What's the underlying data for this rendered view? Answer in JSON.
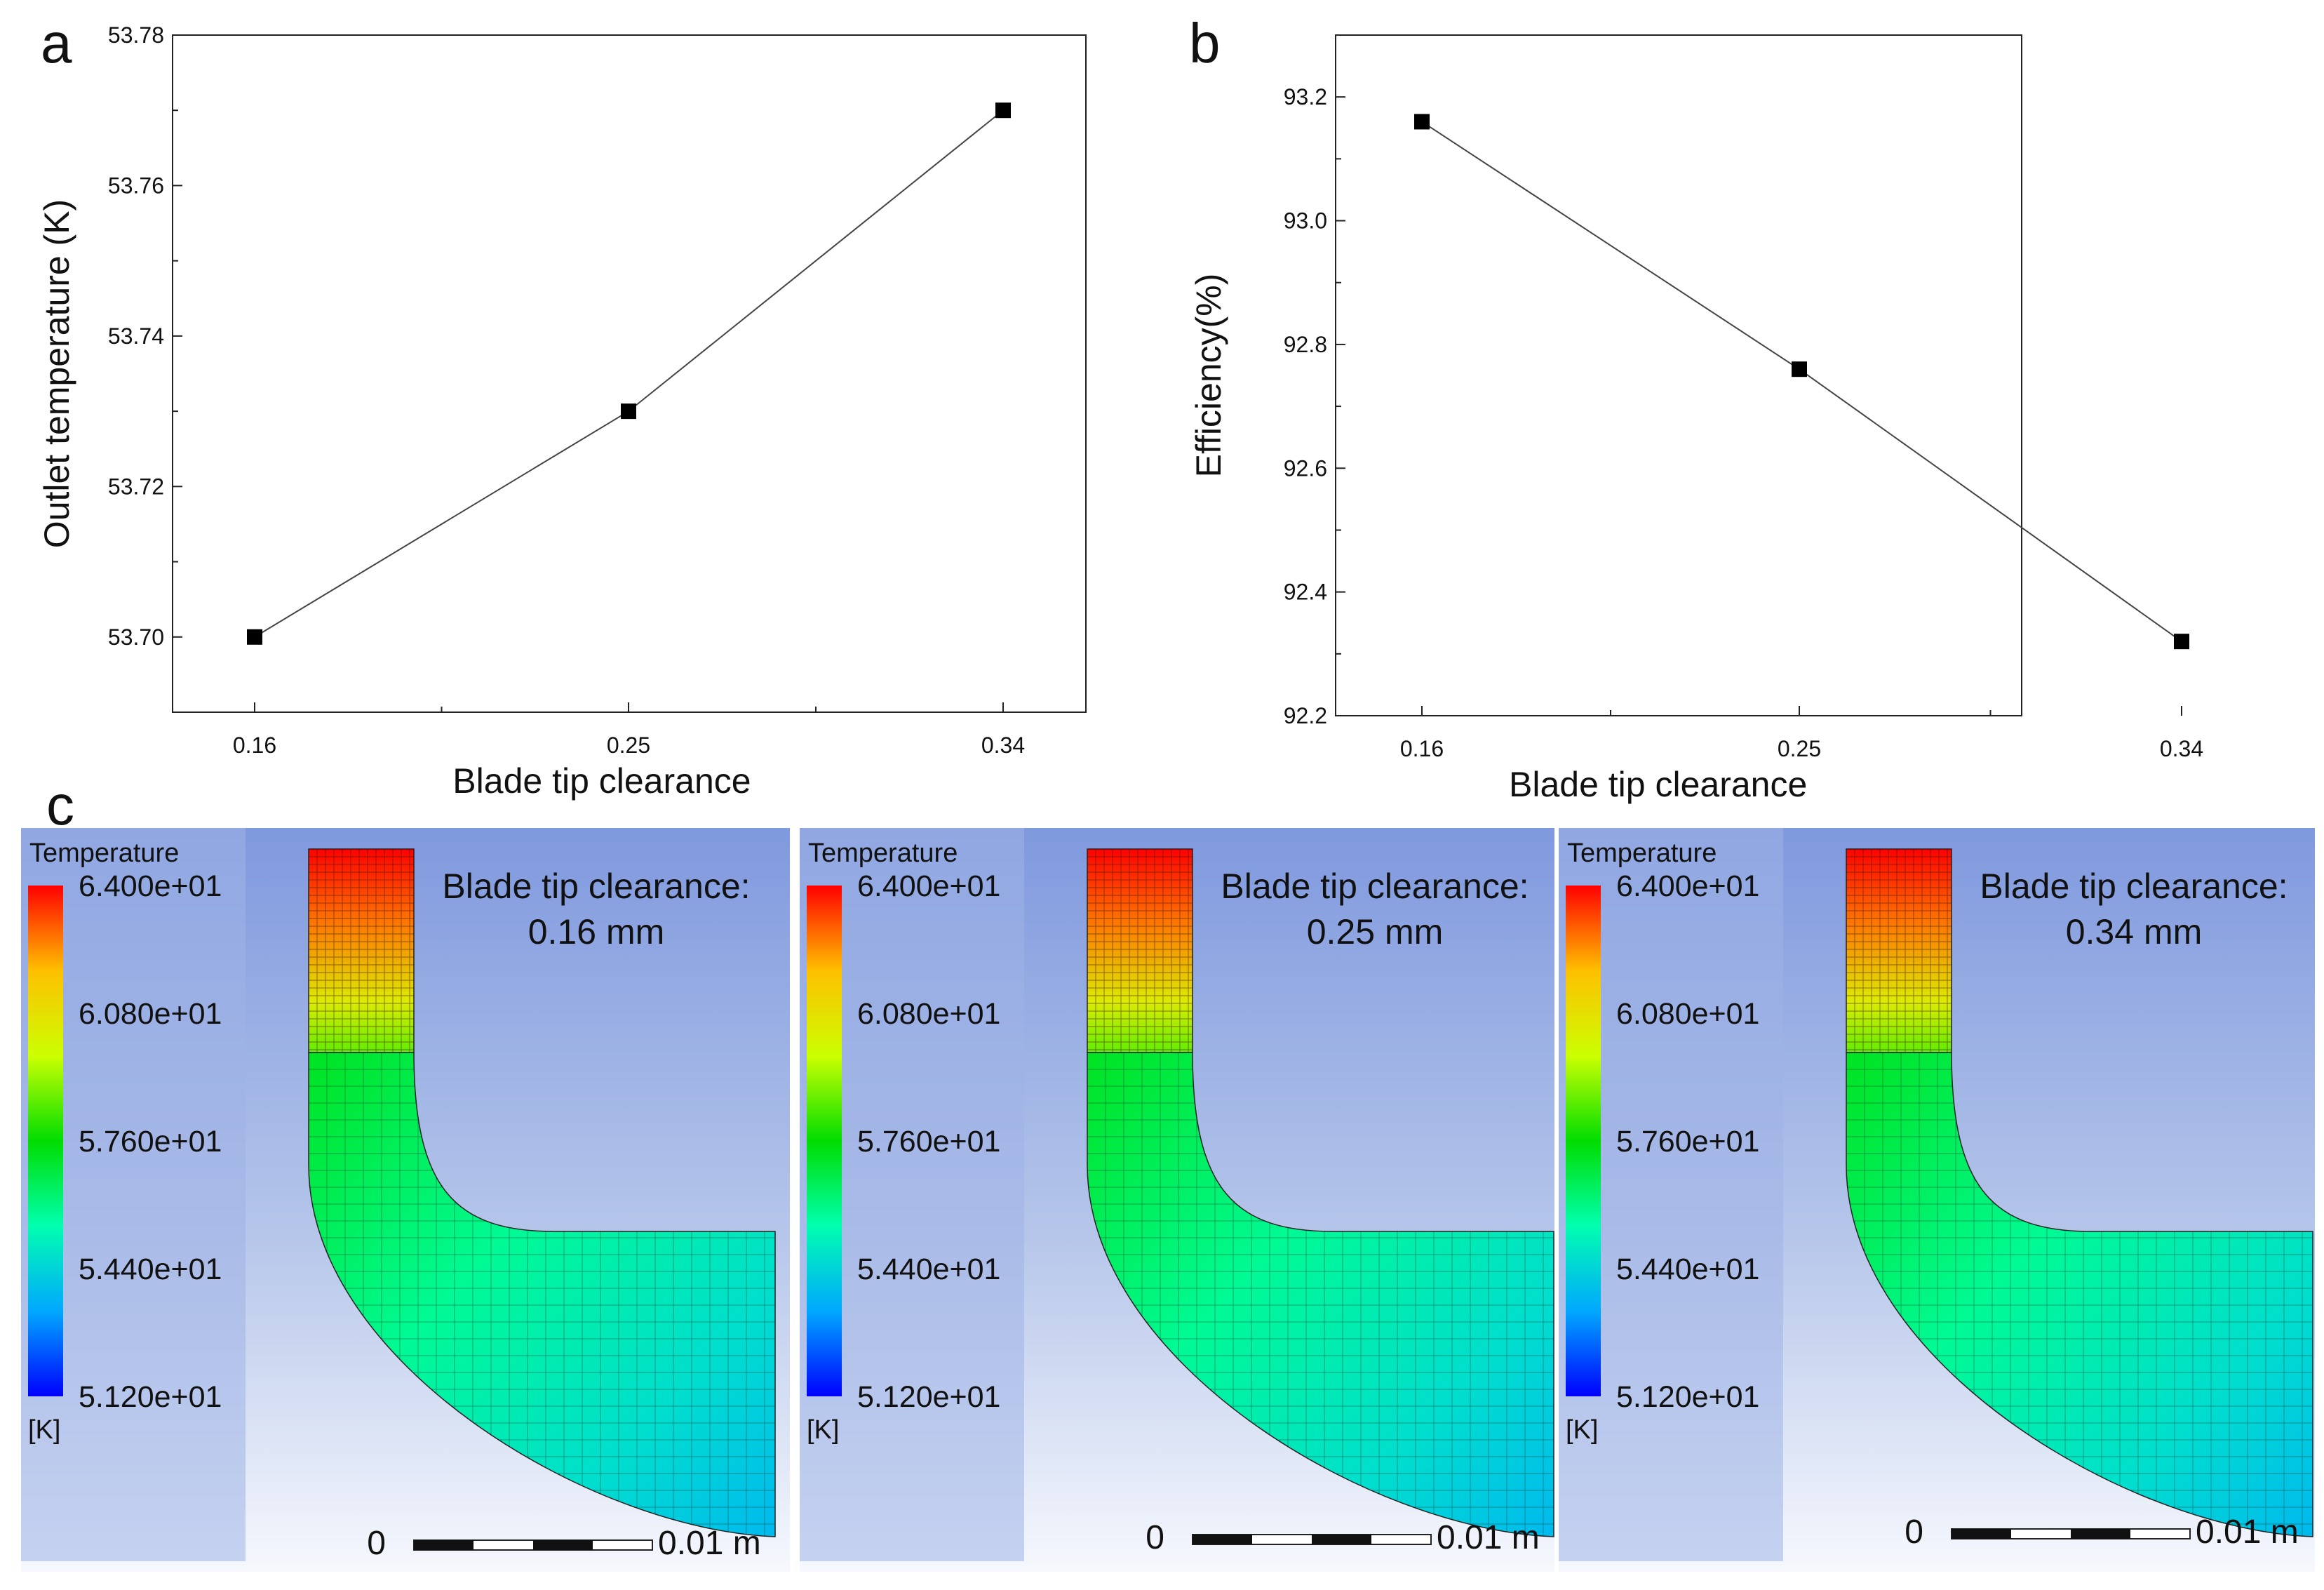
{
  "panels": {
    "a": "a",
    "b": "b",
    "c": "c"
  },
  "chart_data": [
    {
      "type": "line",
      "panel": "a",
      "title": "",
      "categories": [
        "0.16",
        "0.25",
        "0.34"
      ],
      "x": [
        0.16,
        0.25,
        0.34
      ],
      "values": [
        53.7,
        53.73,
        53.77
      ],
      "xlabel": "Blade tip clearance",
      "ylabel": "Outlet temperature (K)",
      "ylim": [
        53.69,
        53.78
      ],
      "yticks": [
        "53.70",
        "53.72",
        "53.74",
        "53.76",
        "53.78"
      ],
      "marker": "square",
      "grid": false
    },
    {
      "type": "line",
      "panel": "b",
      "title": "",
      "categories": [
        "0.16",
        "0.25",
        "0.34"
      ],
      "x": [
        0.16,
        0.25,
        0.34
      ],
      "values": [
        93.16,
        92.76,
        92.32
      ],
      "xlabel": "Blade tip clearance",
      "ylabel": "Efficiency(%)",
      "ylim": [
        92.2,
        93.3
      ],
      "yticks": [
        "92.2",
        "92.4",
        "92.6",
        "92.8",
        "93.0",
        "93.2"
      ],
      "marker": "square",
      "grid": false
    }
  ],
  "contours": {
    "colorbar_title": "Temperature",
    "colorbar_unit": "[K]",
    "colorbar_labels": [
      "6.400e+01",
      "6.080e+01",
      "5.760e+01",
      "5.440e+01",
      "5.120e+01"
    ],
    "colors": [
      "#ff0000",
      "#ffc000",
      "#ccff00",
      "#00dd00",
      "#00ffb0",
      "#00a8ff",
      "#0000ff"
    ],
    "caption_line1": "Blade tip clearance:",
    "scale_start": "0",
    "scale_end": "0.01 m",
    "items": [
      {
        "clearance": "0.16 mm"
      },
      {
        "clearance": "0.25 mm"
      },
      {
        "clearance": "0.34 mm"
      }
    ]
  }
}
